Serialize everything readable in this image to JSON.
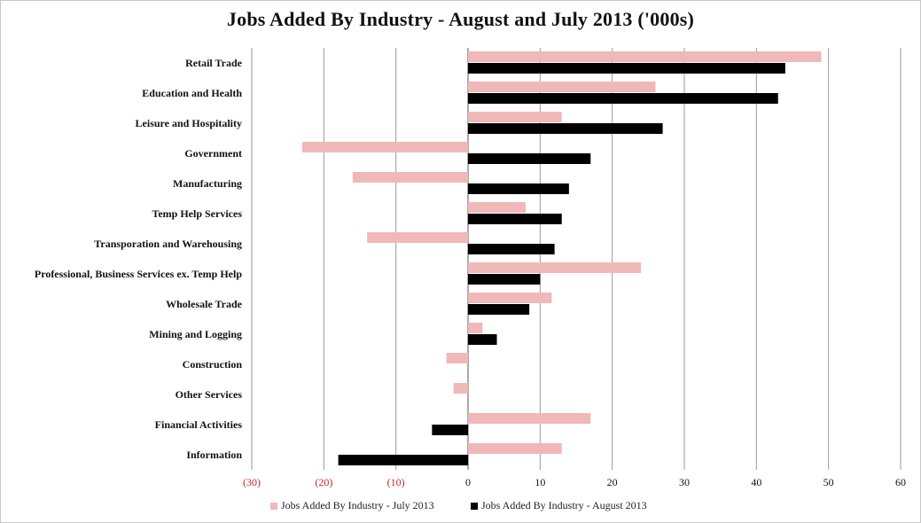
{
  "chart_data": {
    "type": "bar",
    "orientation": "horizontal",
    "title": "Jobs Added By Industry - August and July 2013 ('000s)",
    "categories": [
      "Retail Trade",
      "Education and Health",
      "Leisure and Hospitality",
      "Government",
      "Manufacturing",
      "Temp Help Services",
      "Transporation and Warehousing",
      "Professional, Business Services ex. Temp Help",
      "Wholesale Trade",
      "Mining and Logging",
      "Construction",
      "Other Services",
      "Financial Activities",
      "Information"
    ],
    "series": [
      {
        "name": "Jobs Added By Industry - July 2013",
        "color": "#f0b8b8",
        "values": [
          49,
          26,
          13,
          -23,
          -16,
          8,
          -14,
          24,
          11.6,
          2,
          -3,
          -2,
          17,
          13
        ]
      },
      {
        "name": "Jobs Added By Industry - August 2013",
        "color": "#000000",
        "values": [
          44,
          43,
          27,
          17,
          14,
          13,
          12,
          10,
          8.5,
          4,
          0,
          0,
          -5,
          -18
        ]
      }
    ],
    "xlim": [
      -30,
      60
    ],
    "xticks": [
      -30,
      -20,
      -10,
      0,
      10,
      20,
      30,
      40,
      50,
      60
    ],
    "xtick_labels": [
      "(30)",
      "(20)",
      "(10)",
      "0",
      "10",
      "20",
      "30",
      "40",
      "50",
      "60"
    ],
    "negative_tick_color": "#c0282d",
    "grid": "vertical",
    "legend_position": "bottom"
  }
}
